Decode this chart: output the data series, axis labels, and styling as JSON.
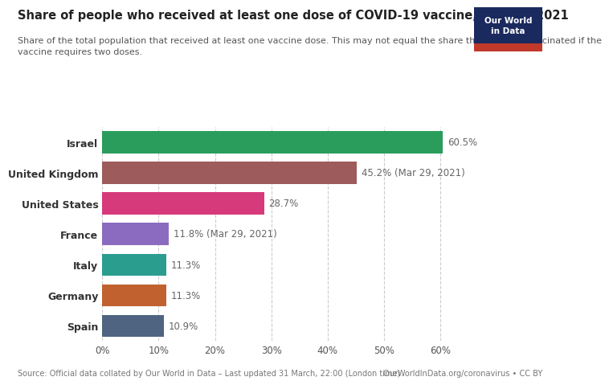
{
  "title": "Share of people who received at least one dose of COVID-19 vaccine, Mar 30, 2021",
  "subtitle": "Share of the total population that received at least one vaccine dose. This may not equal the share that are fully vaccinated if the\nvaccine requires two doses.",
  "countries": [
    "Israel",
    "United Kingdom",
    "United States",
    "France",
    "Italy",
    "Germany",
    "Spain"
  ],
  "values": [
    60.5,
    45.2,
    28.7,
    11.8,
    11.3,
    11.3,
    10.9
  ],
  "labels": [
    "60.5%",
    "45.2% (Mar 29, 2021)",
    "28.7%",
    "11.8% (Mar 29, 2021)",
    "11.3%",
    "11.3%",
    "10.9%"
  ],
  "colors": [
    "#2a9d5c",
    "#9e5b5b",
    "#d63a7a",
    "#8b6bbf",
    "#2a9d8f",
    "#c1612f",
    "#4f6480"
  ],
  "xlim": [
    0,
    65
  ],
  "xticks": [
    0,
    10,
    20,
    30,
    40,
    50,
    60
  ],
  "xtick_labels": [
    "0%",
    "10%",
    "20%",
    "30%",
    "40%",
    "50%",
    "60%"
  ],
  "source_left": "Source: Official data collated by Our World in Data – Last updated 31 March, 22:00 (London time)",
  "source_right": "OurWorldInData.org/coronavirus • CC BY",
  "owid_navy": "#1a2a5e",
  "owid_red": "#c0392b",
  "owid_text_top": "Our World",
  "owid_text_bot": "in Data",
  "background_color": "#ffffff",
  "bar_height": 0.72,
  "title_fontsize": 10.5,
  "subtitle_fontsize": 8.0,
  "label_fontsize": 8.5,
  "ytick_fontsize": 9,
  "xtick_fontsize": 8.5,
  "source_fontsize": 7.0
}
